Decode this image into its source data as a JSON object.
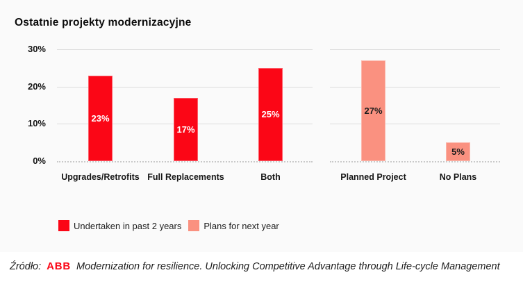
{
  "title": "Ostatnie projekty modernizacyjne",
  "colors": {
    "red": "#fb0616",
    "salmon": "#fa9180",
    "background": "#fafafa",
    "footer_background": "#ffffff",
    "gridline": "#dcdcdc",
    "text": "#141414"
  },
  "chart_data": {
    "type": "bar",
    "title": "Ostatnie projekty modernizacyjne",
    "xlabel": "",
    "ylabel": "",
    "ylim": [
      0,
      30
    ],
    "yticks": [
      "30%",
      "20%",
      "10%",
      "0%"
    ],
    "grid": true,
    "legend_position": "bottom",
    "groups": [
      {
        "name": "Undertaken in past 2 years",
        "color": "#fb0616",
        "label_color": "#ffffff",
        "categories": [
          "Upgrades/Retrofits",
          "Full Replacements",
          "Both"
        ],
        "values": [
          23,
          17,
          25
        ],
        "labels": [
          "23%",
          "17%",
          "25%"
        ]
      },
      {
        "name": "Plans for next year",
        "color": "#fa9180",
        "label_color": "#1c1c1c",
        "categories": [
          "Planned Project",
          "No Plans"
        ],
        "values": [
          27,
          5
        ],
        "labels": [
          "27%",
          "5%"
        ]
      }
    ],
    "legend": [
      {
        "label": "Undertaken in past 2 years",
        "color": "#fb0616"
      },
      {
        "label": "Plans for next year",
        "color": "#fa9180"
      }
    ]
  },
  "source": {
    "prefix": "Źródło:",
    "brand": "ABB",
    "text": "Modernization for resilience. Unlocking Competitive Advantage through Life-cycle Management"
  }
}
